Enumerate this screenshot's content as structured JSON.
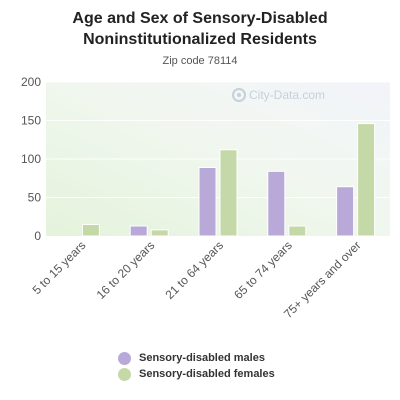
{
  "chart_data": {
    "type": "bar",
    "title": "Age and Sex of Sensory-Disabled Noninstitutionalized Residents",
    "subtitle": "Zip code 78114",
    "categories": [
      "5 to 15 years",
      "16 to 20 years",
      "21 to 64 years",
      "65 to 74 years",
      "75+ years and over"
    ],
    "series": [
      {
        "name": "Sensory-disabled males",
        "values": [
          0,
          13,
          89,
          84,
          64
        ],
        "color": "#b8a9d9"
      },
      {
        "name": "Sensory-disabled females",
        "values": [
          15,
          8,
          112,
          13,
          146
        ],
        "color": "#c5d9a8"
      }
    ],
    "ylim": [
      0,
      200
    ],
    "yticks": [
      0,
      50,
      100,
      150,
      200
    ],
    "grid": true,
    "legend_position": "bottom",
    "watermark": "City-Data.com"
  }
}
